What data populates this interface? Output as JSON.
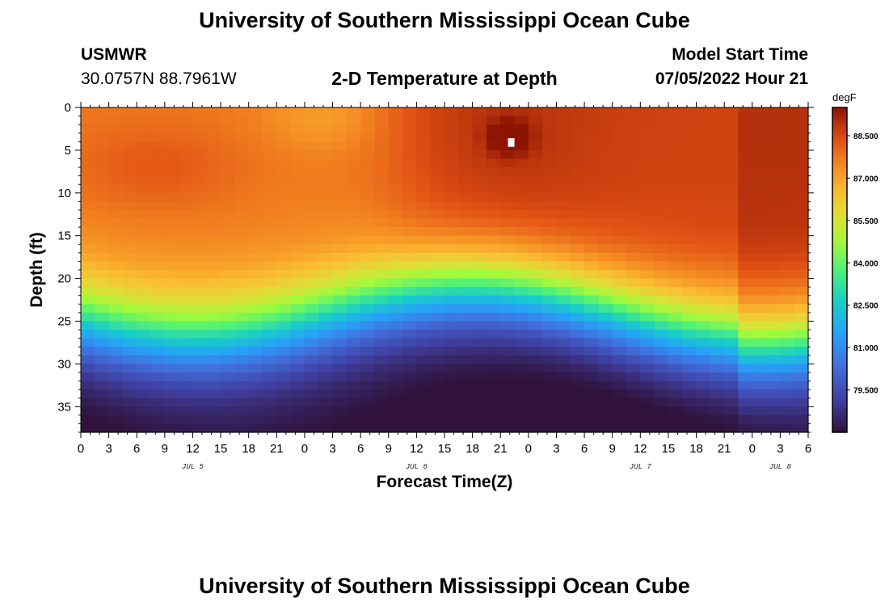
{
  "header": {
    "title": "University of Southern Mississippi Ocean Cube",
    "station_id": "USMWR",
    "station_coords": "30.0757N  88.7961W",
    "start_label": "Model Start Time",
    "start_value": "07/05/2022 Hour 21",
    "footer_title": "University of Southern Mississippi Ocean Cube"
  },
  "chart_data": {
    "type": "heatmap",
    "title": "2-D Temperature at Depth",
    "xlabel": "Forecast Time(Z)",
    "ylabel": "Depth (ft)",
    "x_ticks": [
      "0",
      "3",
      "6",
      "9",
      "12",
      "15",
      "18",
      "21",
      "0",
      "3",
      "6",
      "9",
      "12",
      "15",
      "18",
      "21",
      "0",
      "3",
      "6",
      "9",
      "12",
      "15",
      "18",
      "21",
      "0",
      "3",
      "6"
    ],
    "x_range_hours": [
      0,
      78
    ],
    "date_labels": [
      {
        "label": "JUL 5",
        "hour": 12
      },
      {
        "label": "JUL 6",
        "hour": 36
      },
      {
        "label": "JUL 7",
        "hour": 60
      },
      {
        "label": "JUL 8",
        "hour": 75
      }
    ],
    "y_ticks": [
      0,
      5,
      10,
      15,
      20,
      25,
      30,
      35
    ],
    "ylim": [
      0,
      38
    ],
    "y_inverted": true,
    "colorbar": {
      "unit": "degF",
      "range": [
        78,
        89.5
      ],
      "tick_labels": [
        "88.500",
        "87.000",
        "85.500",
        "84.000",
        "82.500",
        "81.000",
        "79.500"
      ],
      "tick_values": [
        88.5,
        87.0,
        85.5,
        84.0,
        82.5,
        81.0,
        79.5
      ]
    },
    "field_summary": {
      "surface_mixed_layer_temp_degF": [
        87.5,
        89.0
      ],
      "thermocline_depth_ft": [
        20,
        32
      ],
      "bottom_temp_degF": [
        78.2,
        79.0
      ],
      "max_temp_near_hour": 46,
      "max_temp_near_depth_ft": 4
    },
    "grid": false
  }
}
